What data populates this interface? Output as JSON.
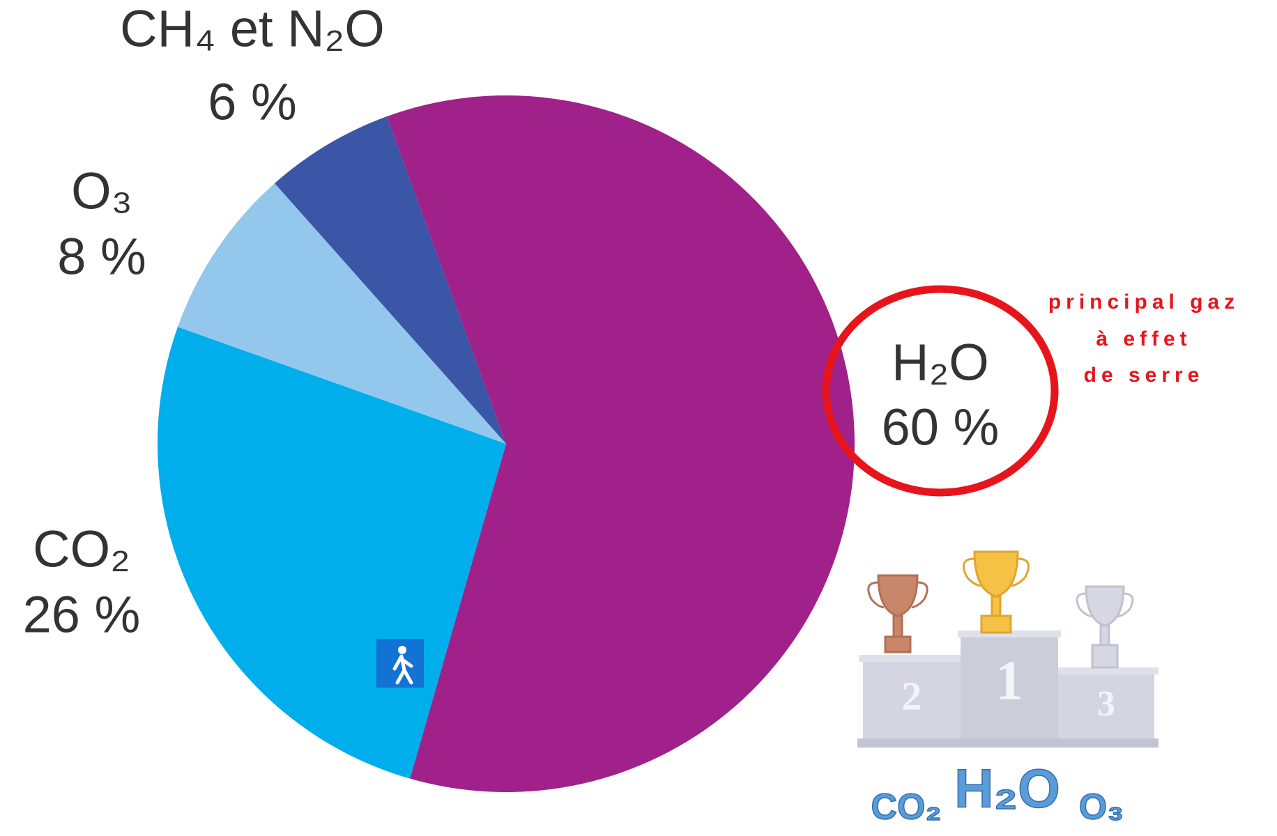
{
  "chart_data": {
    "type": "pie",
    "categories": [
      "H₂O",
      "CO₂",
      "O₃",
      "CH₄ et N₂O"
    ],
    "values": [
      60,
      26,
      8,
      6
    ],
    "value_labels": [
      "60 %",
      "26 %",
      "8 %",
      "6 %"
    ],
    "colors": [
      "#a0218a",
      "#00aeec",
      "#93c8ec",
      "#3b56a6"
    ],
    "annotation": [
      "principal gaz",
      "à effet",
      "de serre"
    ],
    "podium": {
      "ranks": [
        2,
        1,
        3
      ],
      "labels": [
        "CO₂",
        "H₂O",
        "O₃"
      ]
    }
  }
}
